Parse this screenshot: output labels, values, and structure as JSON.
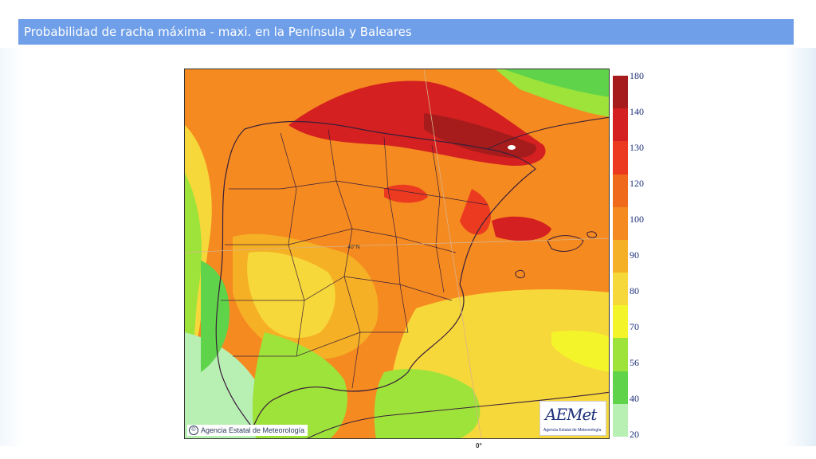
{
  "header": {
    "title": "Probabilidad de racha máxima - maxi. en la Península y Baleares"
  },
  "map": {
    "credit_text": "Agencia Estatal de Meteorología",
    "copyright_symbol": "©",
    "latitude_label": "40°N",
    "longitude_label": "0°",
    "logo_text": "AEMet",
    "logo_subtext": "Agencia Estatal de Meteorología"
  },
  "legend": {
    "labels": [
      "180",
      "140",
      "130",
      "120",
      "100",
      "90",
      "80",
      "70",
      "56",
      "40",
      "20"
    ],
    "colors": [
      "#a61c1c",
      "#d42020",
      "#ec3a20",
      "#f06a1c",
      "#f58a20",
      "#f5b025",
      "#f7d83a",
      "#f4f42a",
      "#9ee33a",
      "#5fd44a",
      "#b8f0b4"
    ]
  }
}
